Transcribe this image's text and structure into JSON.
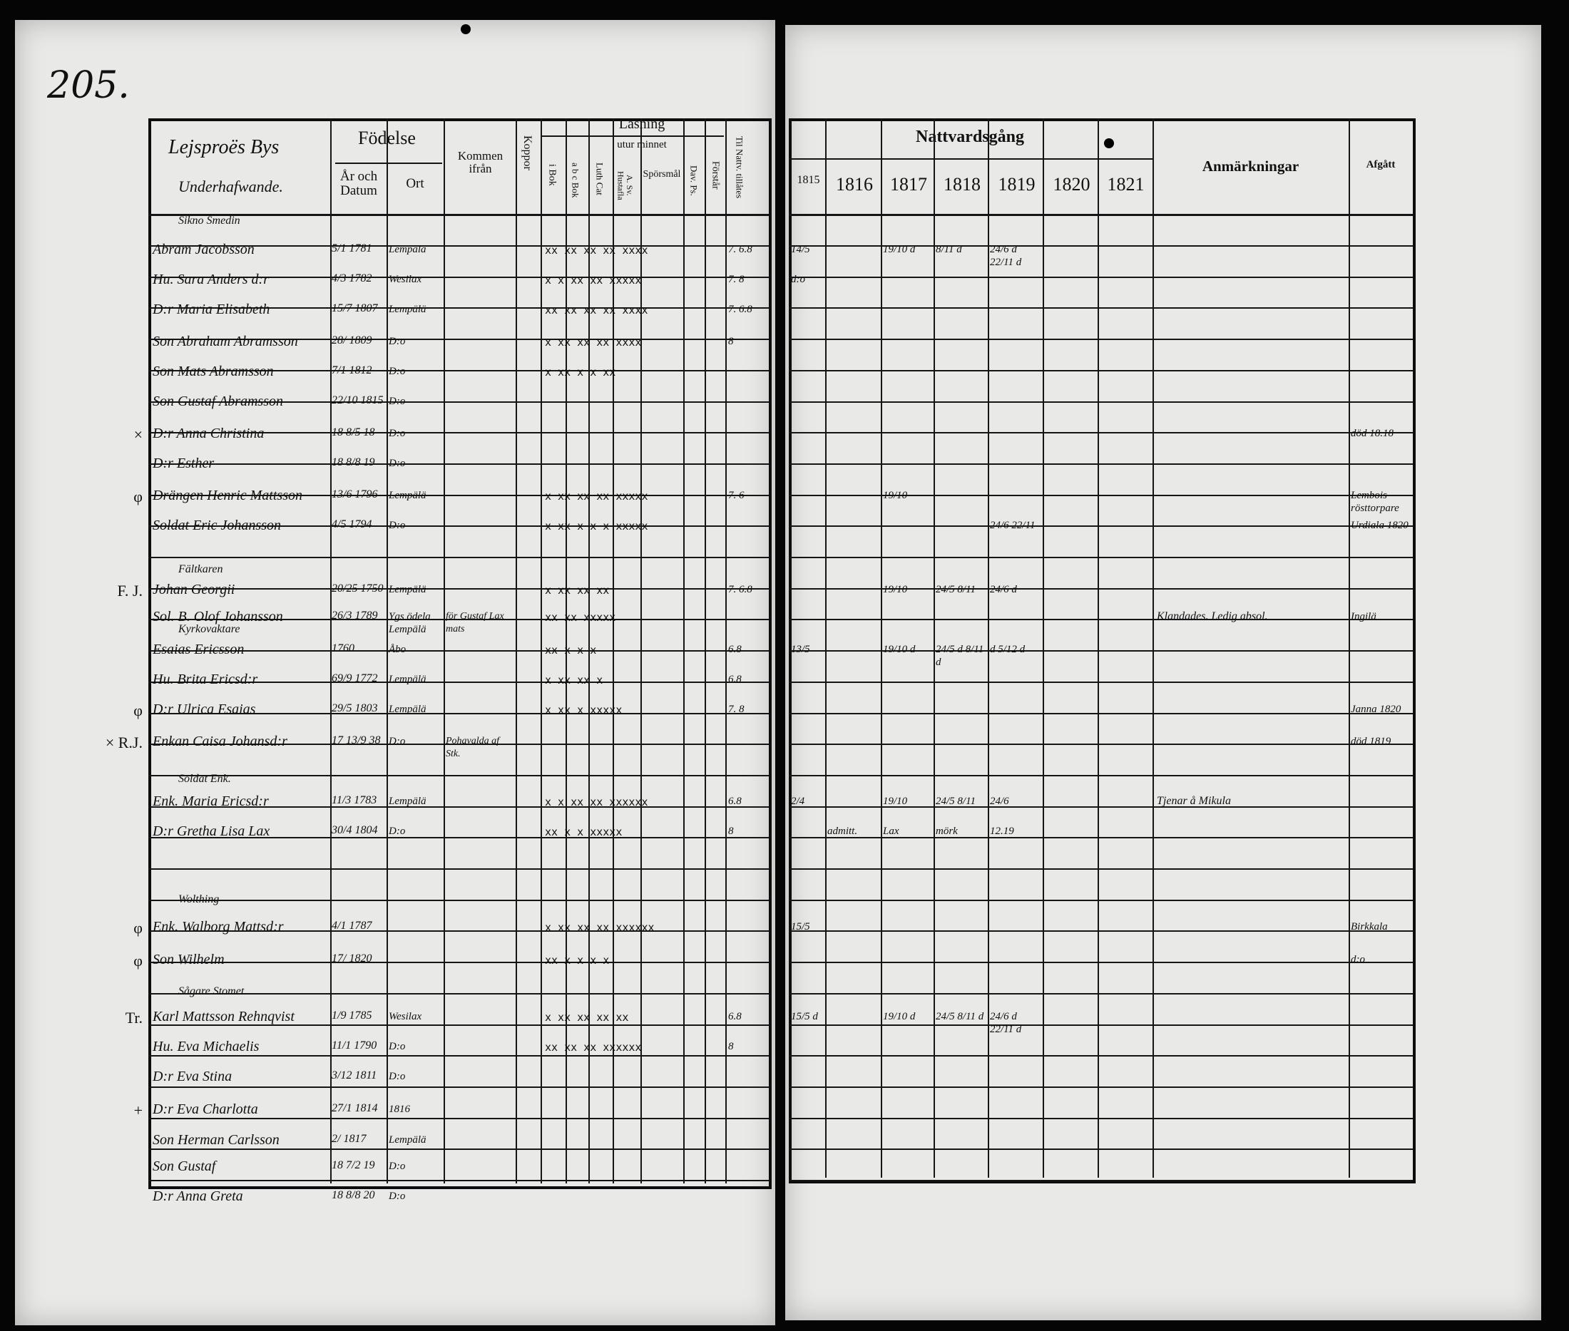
{
  "page_number": "205.",
  "left_header": {
    "title_line1": "Lejsproës Bys",
    "title_line2": "Underhafwande.",
    "fodelse": "Födelse",
    "ar_och_datum": "År och Datum",
    "ort": "Ort",
    "kommen_ifran": "Kommen ifrån",
    "koppor": "Koppor",
    "lasning": "Läsning",
    "utur_minnet": "utur minnet",
    "i_bok": "i Bok",
    "abc_bok": "a b c Bok",
    "luth_cat": "Luth Cat",
    "a_sv_hustafla": "A. Sv. Hustafla",
    "sporsmal": "Spörsmål",
    "dav_ps": "Dav. Ps.",
    "forstar": "Förstår",
    "nattv_tillates": "Til Nattv. tillåtes"
  },
  "right_header": {
    "nattvardsgang": "Nattvardsgång",
    "years": [
      "1815",
      "1816",
      "1817",
      "1818",
      "1819",
      "1820",
      "1821"
    ],
    "anmarkningar": "Anmärkningar",
    "afgatt": "Afgått"
  },
  "rows": [
    {
      "heading": "Sikno Smedin"
    },
    {
      "name": "Abram Jacobsson",
      "date": "5/1 1781",
      "place": "Lempälä",
      "marks": "xx  xx  xx  xx  xxxx",
      "tillates": "7. 6.8",
      "n1815": "14/5",
      "n1817": "19/10 d",
      "n1818": "8/11 d",
      "n1819": "24/6 d  22/11 d"
    },
    {
      "name": "Hu. Sara Anders d:r",
      "date": "4/3 1782",
      "place": "Wesilax",
      "marks": "x  x  xx  xx  xxxxx",
      "tillates": "7. 8",
      "n1815": "d:o"
    },
    {
      "name": "D:r Maria Elisabeth",
      "date": "15/7 1807",
      "place": "Lempälä",
      "marks": "xx xx xx xx xxxx",
      "tillates": "7. 6.8"
    },
    {
      "name": "Son Abraham Abramsson",
      "date": "28/ 1809",
      "place": "D:o",
      "marks": "x  xx xx  xx xxxx",
      "tillates": "8"
    },
    {
      "name": "Son Mats Abramsson",
      "date": "7/1 1812",
      "place": "D:o",
      "marks": "x  xx x x  xx"
    },
    {
      "name": "Son Gustaf Abramsson",
      "date": "22/10 1815",
      "place": "D:o"
    },
    {
      "name": "D:r Anna Christina",
      "date": "18 8/5 18",
      "place": "D:o",
      "afgatt": "död 18.18",
      "margin": "×"
    },
    {
      "name": "D:r Esther",
      "date": "18 8/8 19",
      "place": "D:o"
    },
    {
      "name": "Drängen Henric Mattsson",
      "date": "13/6 1796",
      "place": "Lempälä",
      "marks": "x  xx xx  xx xxxxx",
      "tillates": "7. 6",
      "n1817": "19/10",
      "afgatt": "Lembois rösttorpare",
      "margin": "φ"
    },
    {
      "name": "Soldat Eric Johansson",
      "date": "4/5 1794",
      "place": "D:o",
      "marks": "x  xx x x  x  xxxxx",
      "n1819": "24/6  22/11",
      "afgatt": "Urdiala 1820"
    },
    {},
    {
      "heading": "Fältkaren"
    },
    {
      "name": "Johan Georgii",
      "date": "20/25 1750",
      "place": "Lempälä",
      "marks": "x  xx xx  xx",
      "tillates": "7. 6.8",
      "n1817": "19/10",
      "n1818": "24/5  8/11",
      "n1819": "24/6 d",
      "margin": "F. J."
    },
    {
      "name": "Sol. B. Olof Johansson",
      "date": "26/3 1789",
      "place": "Ygs ödela Lempälä",
      "from": "för Gustaf Lax mats",
      "marks": "xx  xx  xxxxx",
      "note": "Klandades. Ledig absol.",
      "afgatt": "Ingilä"
    },
    {
      "heading": "Kyrkovaktare"
    },
    {
      "name": "Esaias Ericsson",
      "date": "1760.",
      "place": "Åbo",
      "marks": "xx x x  x",
      "tillates": "6.8",
      "n1815": "13/5",
      "n1817": "19/10 d",
      "n1818": "24/5 d  8/11 d",
      "n1819": "d  5/12 d"
    },
    {
      "name": "Hu. Brita Ericsd:r",
      "date": "69/9 1772",
      "place": "Lempälä",
      "marks": "x  xx  xx x",
      "tillates": "6.8"
    },
    {
      "name": "D:r Ulrica Esaias",
      "date": "29/5 1803",
      "place": "Lempälä",
      "marks": "x  xx x  xxxxx",
      "tillates": "7. 8",
      "afgatt": "Janna 1820",
      "margin": "φ"
    },
    {
      "name": "Enkan Caisa Johansd:r",
      "date": "17 13/9 38",
      "place": "D:o",
      "from": "Pohavalda af Stk.",
      "afgatt": "död 1819",
      "margin": "× R.J."
    },
    {},
    {
      "heading": "Soldat Enk."
    },
    {
      "name": "Enk. Maria Ericsd:r",
      "date": "11/3 1783",
      "place": "Lempälä",
      "marks": "x  x  xx  xx  xxxxxx",
      "tillates": "6.8",
      "n1815": "2/4",
      "n1817": "19/10",
      "n1818": "24/5  8/11",
      "n1819": "24/6",
      "note": "Tjenar å Mikula"
    },
    {
      "name": "D:r Gretha Lisa Lax",
      "date": "30/4 1804",
      "place": "D:o",
      "marks": "xx  x  x  xxxxx",
      "tillates": "8",
      "n1816": "admitt.",
      "n1817": "Lax",
      "n1818": "mörk",
      "n1819": "12.19"
    },
    {},
    {},
    {
      "heading": "Wolthing"
    },
    {
      "name": "Enk. Walborg Mattsd:r",
      "date": "4/1 1787",
      "marks": "x  xx xx  xx xxxxxx",
      "n1815": "15/5",
      "afgatt": "Birkkala",
      "margin": "φ"
    },
    {
      "name": "Son Wilhelm",
      "date": "17/ 1820",
      "marks": "xx x x  x  x",
      "afgatt": "d:o",
      "margin": "φ"
    },
    {},
    {
      "heading": "Sågare Stomet."
    },
    {
      "name": "Karl Mattsson Rehnqvist",
      "date": "1/9 1785",
      "place": "Wesilax",
      "marks": "x  xx xx  xx xx",
      "tillates": "6.8",
      "n1815": "15/5 d",
      "n1817": "19/10 d",
      "n1818": "24/5  8/11 d",
      "n1819": "24/6 d  22/11 d",
      "margin": "Tr."
    },
    {
      "name": "Hu. Eva Michaelis",
      "date": "11/1 1790",
      "place": "D:o",
      "marks": "xx  xx  xx  xxxxxx",
      "tillates": "8"
    },
    {
      "name": "D:r Eva Stina",
      "date": "3/12 1811",
      "place": "D:o"
    },
    {
      "name": "D:r Eva Charlotta",
      "date": "27/1 1814",
      "place": "1816",
      "margin": "+"
    },
    {
      "name": "Son Herman Carlsson",
      "date": "2/ 1817",
      "place": "Lempälä"
    },
    {
      "name": "Son Gustaf",
      "date": "18 7/2 19",
      "place": "D:o"
    },
    {
      "name": "D:r Anna Greta",
      "date": "18 8/8 20",
      "place": "D:o"
    }
  ]
}
